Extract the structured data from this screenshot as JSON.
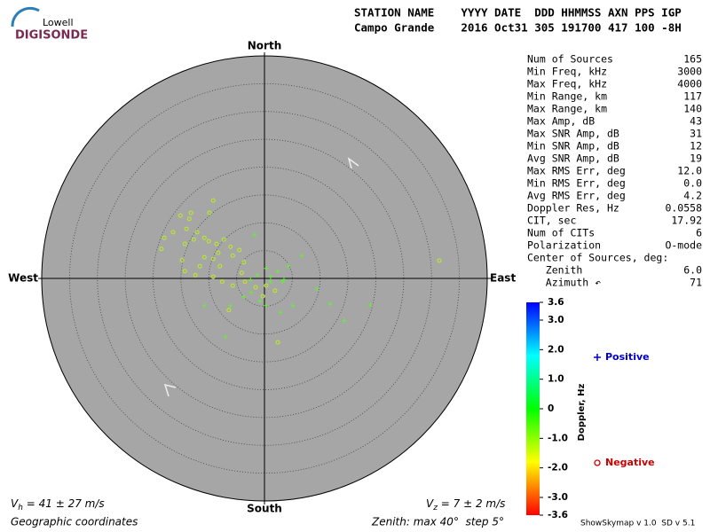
{
  "logo": {
    "top": "Lowell",
    "bottom": "DIGISONDE"
  },
  "header": {
    "line1": "STATION NAME    YYYY DATE  DDD HHMMSS AXN PPS IGP",
    "line2": "Campo Grande    2016 Oct31 305 191700 417 100 -8H"
  },
  "stats": {
    "rows": [
      [
        "Num of Sources",
        "165"
      ],
      [
        "Min Freq, kHz",
        "3000"
      ],
      [
        "Max Freq, kHz",
        "4000"
      ],
      [
        "Min Range, km",
        "117"
      ],
      [
        "Max Range, km",
        "140"
      ],
      [
        "Max Amp, dB",
        "43"
      ],
      [
        "Max SNR Amp, dB",
        "31"
      ],
      [
        "Min SNR Amp, dB",
        "12"
      ],
      [
        "Avg SNR Amp, dB",
        "19"
      ],
      [
        "Max RMS Err, deg",
        "12.0"
      ],
      [
        "Min RMS Err, deg",
        "0.0"
      ],
      [
        "Avg RMS Err, deg",
        "4.2"
      ],
      [
        "Doppler Res, Hz",
        "0.0558"
      ],
      [
        "CIT, sec",
        "17.92"
      ],
      [
        "Num of CITs",
        "6"
      ],
      [
        "Polarization",
        "O-mode"
      ],
      [
        "Center of Sources, deg:",
        ""
      ],
      [
        "   Zenith",
        "6.0"
      ],
      [
        "   Azimuth ↶",
        "71"
      ]
    ]
  },
  "footer": {
    "vh": {
      "symbol": "V",
      "sub": "h",
      "text": " = 41 ± 27 m/s"
    },
    "vz": {
      "symbol": "V",
      "sub": "z",
      "text": " = 7 ± 2 m/s"
    },
    "coords": "Geographic coordinates",
    "zenith": "Zenith: max 40°  step 5°",
    "version": "ShowSkymap v 1.0  SD v 5.1"
  },
  "chart_data": {
    "type": "skymap",
    "directions": {
      "north": "North",
      "south": "South",
      "east": "East",
      "west": "West"
    },
    "xlim": [
      -40,
      40
    ],
    "ylim": [
      -40,
      40
    ],
    "rticks": [
      5,
      10,
      15,
      20,
      25,
      30,
      35,
      40
    ],
    "series": [
      {
        "name": "Positive",
        "marker": "+",
        "color": "#66ee33",
        "legend_color": "#0000cc",
        "x": [
          -1.8,
          6.7,
          0.3,
          2.4,
          3.5,
          1.1,
          -0.8,
          -2.4,
          -3.7,
          -1.3,
          0.3,
          2.9,
          5.1,
          9.4,
          11.8,
          14.3,
          19.0,
          -7.0,
          -10.8,
          -6.1,
          1.1,
          3.2,
          4.3,
          -2.5
        ],
        "values": [
          7.8,
          4.1,
          1.8,
          1.3,
          -0.2,
          -0.6,
          -4.1,
          -2.5,
          -3.3,
          0.6,
          -4.9,
          -6.1,
          -4.9,
          -1.9,
          -4.6,
          -7.6,
          -4.8,
          -10.5,
          -4.9,
          -4.9,
          0.3,
          -0.6,
          2.2,
          -0.3
        ]
      },
      {
        "name": "Negative",
        "marker": "o",
        "color": "#bbee22",
        "legend_color": "#cc0000",
        "x": [
          -15.1,
          -13.2,
          -9.2,
          -16.4,
          -14.0,
          -12.1,
          -10.8,
          -18.0,
          -18.5,
          -14.3,
          -12.7,
          -10.0,
          -8.6,
          -7.3,
          -6.1,
          -4.5,
          -10.8,
          -9.2,
          -8.0,
          -11.6,
          -14.3,
          -12.4,
          -9.2,
          -7.6,
          -5.7,
          -3.5,
          -1.6,
          0.3,
          1.9,
          -0.3,
          -5.7,
          -3.7,
          31.4,
          2.4,
          -6.4,
          -4.1,
          -8.3,
          -13.5,
          -14.8,
          -9.9
        ],
        "values": [
          11.3,
          11.8,
          14.0,
          8.3,
          8.9,
          8.3,
          7.3,
          7.3,
          5.3,
          6.2,
          7.0,
          6.7,
          6.2,
          7.0,
          5.7,
          5.1,
          3.8,
          3.5,
          2.2,
          2.2,
          1.3,
          0.6,
          0.3,
          -0.6,
          -1.3,
          -0.6,
          -1.6,
          -1.3,
          -2.2,
          -3.2,
          4.1,
          2.9,
          3.2,
          -11.5,
          -5.7,
          1.0,
          4.6,
          10.7,
          3.3,
          11.8
        ]
      }
    ],
    "colorbar": {
      "label": "Doppler, Hz",
      "clim": [
        -3.6,
        3.6
      ],
      "colors": [
        "#ff0000",
        "#ffff00",
        "#00ff00",
        "#00ffff",
        "#0000ff"
      ],
      "ticks": [
        3.6,
        {
          "value": 3,
          "label": "3.0"
        },
        {
          "value": 2,
          "label": "2.0"
        },
        {
          "value": 1,
          "label": "1.0"
        },
        0,
        {
          "value": -1,
          "label": "-1.0"
        },
        {
          "value": -2,
          "label": "-2.0"
        },
        {
          "value": -3,
          "label": "-3.0"
        },
        -3.6
      ]
    }
  }
}
